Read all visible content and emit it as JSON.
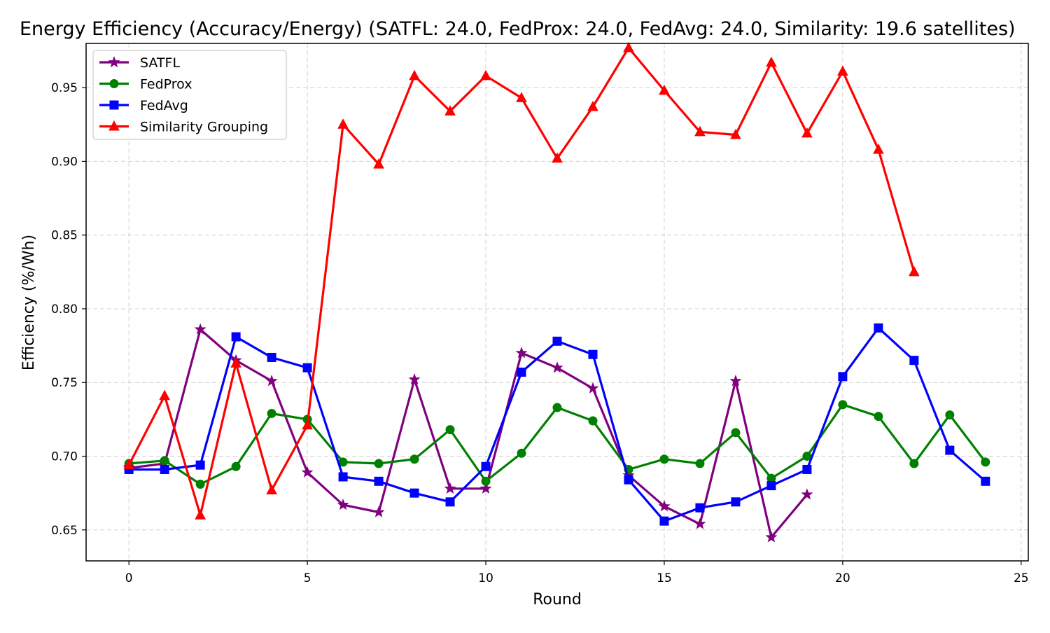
{
  "chart_data": {
    "type": "line",
    "title": "Energy Efficiency (Accuracy/Energy) (SATFL: 24.0, FedProx: 24.0, FedAvg: 24.0, Similarity: 19.6 satellites)",
    "xlabel": "Round",
    "ylabel": "Efficiency (%/Wh)",
    "xlim": [
      -1.2,
      25.2
    ],
    "ylim": [
      0.629,
      0.98
    ],
    "xticks": [
      0,
      5,
      10,
      15,
      20,
      25
    ],
    "yticks": [
      0.65,
      0.7,
      0.75,
      0.8,
      0.85,
      0.9,
      0.95
    ],
    "ytick_labels": [
      "0.65",
      "0.70",
      "0.75",
      "0.80",
      "0.85",
      "0.90",
      "0.95"
    ],
    "grid": true,
    "legend_position": "top-left",
    "series": [
      {
        "name": "SATFL",
        "color": "#800080",
        "marker": "star",
        "x": [
          0,
          1,
          2,
          3,
          4,
          5,
          6,
          7,
          8,
          9,
          10,
          11,
          12,
          13,
          14,
          15,
          16,
          17,
          18,
          19
        ],
        "values": [
          0.692,
          0.695,
          0.786,
          0.765,
          0.751,
          0.689,
          0.667,
          0.662,
          0.752,
          0.678,
          0.678,
          0.77,
          0.76,
          0.746,
          0.687,
          0.666,
          0.654,
          0.751,
          0.645,
          0.674
        ]
      },
      {
        "name": "FedProx",
        "color": "#008000",
        "marker": "circle",
        "x": [
          0,
          1,
          2,
          3,
          4,
          5,
          6,
          7,
          8,
          9,
          10,
          11,
          12,
          13,
          14,
          15,
          16,
          17,
          18,
          19,
          20,
          21,
          22,
          23,
          24
        ],
        "values": [
          0.695,
          0.697,
          0.681,
          0.693,
          0.729,
          0.725,
          0.696,
          0.695,
          0.698,
          0.718,
          0.683,
          0.702,
          0.733,
          0.724,
          0.691,
          0.698,
          0.695,
          0.716,
          0.685,
          0.7,
          0.735,
          0.727,
          0.695,
          0.728,
          0.696
        ]
      },
      {
        "name": "FedAvg",
        "color": "#0000ff",
        "marker": "square",
        "x": [
          0,
          1,
          2,
          3,
          4,
          5,
          6,
          7,
          8,
          9,
          10,
          11,
          12,
          13,
          14,
          15,
          16,
          17,
          18,
          19,
          20,
          21,
          22,
          23,
          24
        ],
        "values": [
          0.691,
          0.691,
          0.694,
          0.781,
          0.767,
          0.76,
          0.686,
          0.683,
          0.675,
          0.669,
          0.693,
          0.757,
          0.778,
          0.769,
          0.684,
          0.656,
          0.665,
          0.669,
          0.68,
          0.691,
          0.754,
          0.787,
          0.765,
          0.704,
          0.683
        ]
      },
      {
        "name": "Similarity Grouping",
        "color": "#ff0000",
        "marker": "triangle",
        "x": [
          0,
          1,
          2,
          3,
          4,
          5,
          6,
          7,
          8,
          9,
          10,
          11,
          12,
          13,
          14,
          15,
          16,
          17,
          18,
          19,
          20,
          21,
          22
        ],
        "values": [
          0.694,
          0.741,
          0.66,
          0.763,
          0.677,
          0.721,
          0.925,
          0.898,
          0.958,
          0.934,
          0.958,
          0.943,
          0.902,
          0.937,
          0.977,
          0.948,
          0.92,
          0.918,
          0.967,
          0.919,
          0.961,
          0.908,
          0.825
        ]
      }
    ]
  }
}
